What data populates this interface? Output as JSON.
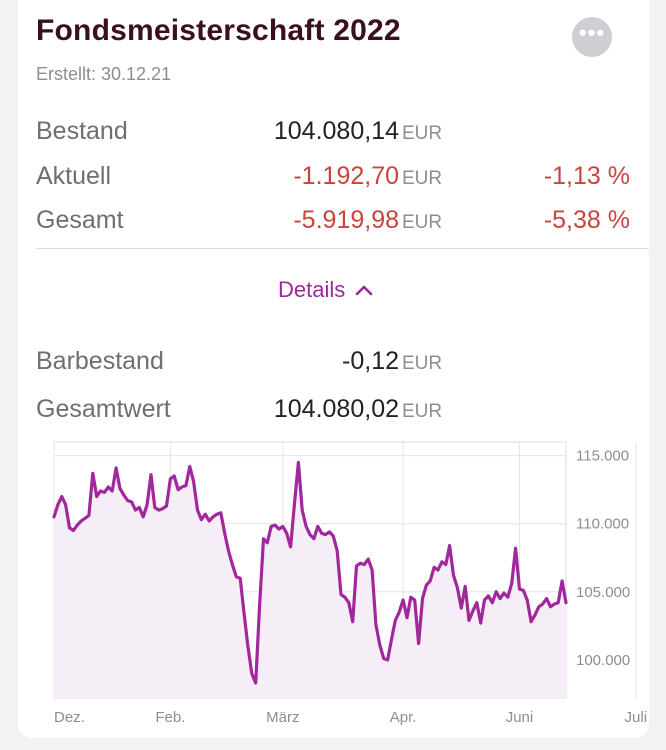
{
  "header": {
    "title": "Fondsmeisterschaft 2022",
    "created": "Erstellt: 30.12.21",
    "more_icon": "ellipsis-icon"
  },
  "summary": {
    "bestand": {
      "label": "Bestand",
      "amount": "104.080,14",
      "unit": "EUR"
    },
    "aktuell": {
      "label": "Aktuell",
      "amount": "-1.192,70",
      "unit": "EUR",
      "percent": "-1,13 %"
    },
    "gesamt": {
      "label": "Gesamt",
      "amount": "-5.919,98",
      "unit": "EUR",
      "percent": "-5,38 %"
    }
  },
  "details": {
    "label": "Details",
    "icon": "chevron-up-icon"
  },
  "cash": {
    "barbestand": {
      "label": "Barbestand",
      "amount": "-0,12",
      "unit": "EUR"
    },
    "gesamtwert": {
      "label": "Gesamtwert",
      "amount": "104.080,02",
      "unit": "EUR"
    }
  },
  "colors": {
    "accent": "#9a2a98",
    "negative": "#c8443c",
    "title": "#3a1020"
  },
  "chart_data": {
    "type": "area",
    "title": "",
    "xlabel": "",
    "ylabel": "",
    "ylim": [
      97200,
      116000
    ],
    "y_ticks": [
      100000,
      105000,
      110000,
      115000
    ],
    "y_tick_labels": [
      "100.000",
      "105.000",
      "110.000",
      "115.000"
    ],
    "x_ticks": [
      0,
      30,
      59,
      90,
      120,
      150
    ],
    "x_tick_labels": [
      "Dez.",
      "Feb.",
      "März",
      "Apr.",
      "Juni",
      "Juli"
    ],
    "grid": true,
    "series": [
      {
        "values": [
          [
            0,
            110500
          ],
          [
            1,
            111400
          ],
          [
            2,
            112000
          ],
          [
            3,
            111400
          ],
          [
            4,
            109700
          ],
          [
            5,
            109500
          ],
          [
            6,
            109900
          ],
          [
            7,
            110200
          ],
          [
            8,
            110400
          ],
          [
            9,
            110600
          ],
          [
            10,
            113700
          ],
          [
            11,
            112000
          ],
          [
            12,
            112400
          ],
          [
            13,
            112300
          ],
          [
            14,
            112700
          ],
          [
            15,
            112400
          ],
          [
            16,
            114100
          ],
          [
            17,
            112600
          ],
          [
            18,
            112100
          ],
          [
            19,
            111700
          ],
          [
            20,
            111600
          ],
          [
            21,
            111000
          ],
          [
            22,
            111200
          ],
          [
            23,
            110500
          ],
          [
            24,
            111400
          ],
          [
            25,
            113600
          ],
          [
            26,
            111200
          ],
          [
            27,
            111000
          ],
          [
            28,
            111100
          ],
          [
            29,
            111300
          ],
          [
            30,
            113300
          ],
          [
            31,
            113500
          ],
          [
            32,
            112500
          ],
          [
            33,
            112700
          ],
          [
            34,
            112800
          ],
          [
            35,
            114200
          ],
          [
            36,
            113100
          ],
          [
            37,
            111000
          ],
          [
            38,
            110300
          ],
          [
            39,
            110700
          ],
          [
            40,
            110200
          ],
          [
            41,
            110500
          ],
          [
            42,
            110700
          ],
          [
            43,
            110800
          ],
          [
            44,
            109300
          ],
          [
            45,
            108000
          ],
          [
            46,
            107000
          ],
          [
            47,
            106100
          ],
          [
            48,
            106000
          ],
          [
            49,
            103400
          ],
          [
            50,
            101000
          ],
          [
            51,
            99000
          ],
          [
            52,
            98300
          ],
          [
            53,
            104000
          ],
          [
            54,
            108900
          ],
          [
            55,
            108600
          ],
          [
            56,
            109800
          ],
          [
            57,
            109900
          ],
          [
            58,
            109600
          ],
          [
            59,
            109800
          ],
          [
            60,
            109300
          ],
          [
            61,
            108300
          ],
          [
            62,
            111500
          ],
          [
            63,
            114500
          ],
          [
            64,
            111000
          ],
          [
            65,
            109800
          ],
          [
            66,
            109200
          ],
          [
            67,
            108900
          ],
          [
            68,
            109800
          ],
          [
            69,
            109300
          ],
          [
            70,
            109200
          ],
          [
            71,
            109400
          ],
          [
            72,
            109100
          ],
          [
            73,
            108000
          ],
          [
            74,
            104800
          ],
          [
            75,
            104600
          ],
          [
            76,
            104200
          ],
          [
            77,
            102800
          ],
          [
            78,
            106900
          ],
          [
            79,
            107100
          ],
          [
            80,
            107000
          ],
          [
            81,
            107400
          ],
          [
            82,
            106600
          ],
          [
            83,
            102600
          ],
          [
            84,
            101100
          ],
          [
            85,
            100100
          ],
          [
            86,
            100000
          ],
          [
            87,
            101500
          ],
          [
            88,
            102900
          ],
          [
            89,
            103500
          ],
          [
            90,
            104400
          ],
          [
            91,
            103100
          ],
          [
            92,
            104600
          ],
          [
            93,
            104400
          ],
          [
            94,
            101200
          ],
          [
            95,
            104500
          ],
          [
            96,
            105500
          ],
          [
            97,
            105800
          ],
          [
            98,
            106800
          ],
          [
            99,
            106600
          ],
          [
            100,
            107200
          ],
          [
            101,
            107000
          ],
          [
            102,
            108400
          ],
          [
            103,
            106200
          ],
          [
            104,
            105300
          ],
          [
            105,
            103800
          ],
          [
            106,
            105400
          ],
          [
            107,
            102900
          ],
          [
            108,
            103600
          ],
          [
            109,
            104200
          ],
          [
            110,
            102700
          ],
          [
            111,
            104400
          ],
          [
            112,
            104700
          ],
          [
            113,
            104200
          ],
          [
            114,
            105000
          ],
          [
            115,
            104500
          ],
          [
            116,
            104900
          ],
          [
            117,
            104600
          ],
          [
            118,
            105600
          ],
          [
            119,
            108200
          ],
          [
            120,
            105200
          ],
          [
            121,
            105100
          ],
          [
            122,
            104400
          ],
          [
            123,
            102800
          ],
          [
            124,
            103300
          ],
          [
            125,
            103900
          ],
          [
            126,
            104100
          ],
          [
            127,
            104500
          ],
          [
            128,
            103900
          ],
          [
            129,
            104100
          ],
          [
            130,
            104200
          ],
          [
            131,
            105800
          ],
          [
            132,
            104200
          ]
        ]
      }
    ]
  }
}
